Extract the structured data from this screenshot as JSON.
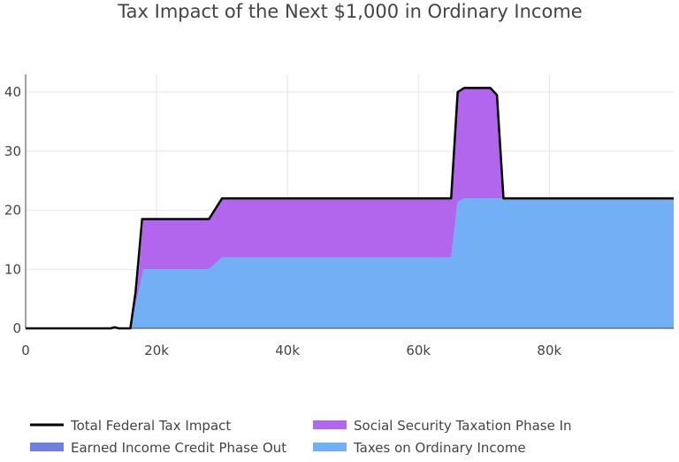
{
  "chart_data": {
    "type": "area",
    "title": "Tax Impact of the Next $1,000 in Ordinary Income",
    "xlabel": "",
    "ylabel": "",
    "xlim": [
      0,
      99000
    ],
    "ylim": [
      0,
      43
    ],
    "grid": true,
    "legend_position": "bottom",
    "x_ticks": [
      {
        "value": 0,
        "label": "0"
      },
      {
        "value": 20000,
        "label": "20k"
      },
      {
        "value": 40000,
        "label": "40k"
      },
      {
        "value": 60000,
        "label": "60k"
      },
      {
        "value": 80000,
        "label": "80k"
      }
    ],
    "y_ticks": [
      {
        "value": 0,
        "label": "0"
      },
      {
        "value": 10,
        "label": "10"
      },
      {
        "value": 20,
        "label": "20"
      },
      {
        "value": 30,
        "label": "30"
      },
      {
        "value": 40,
        "label": "40"
      }
    ],
    "legend": [
      {
        "name": "Total Federal Tax Impact",
        "color": "#000000",
        "kind": "line"
      },
      {
        "name": "Social Security Taxation Phase In",
        "color": "#b266ee",
        "kind": "fill"
      },
      {
        "name": "Earned Income Credit Phase Out",
        "color": "#6f7fdd",
        "kind": "fill"
      },
      {
        "name": "Taxes on Ordinary Income",
        "color": "#73aff4",
        "kind": "fill"
      }
    ],
    "series": [
      {
        "name": "Taxes on Ordinary Income",
        "color": "#73aff4",
        "x": [
          0,
          16000,
          17000,
          18000,
          28000,
          30000,
          65000,
          66000,
          67000,
          99000
        ],
        "y": [
          0,
          0,
          5,
          10,
          10,
          12,
          12,
          21.5,
          22,
          22
        ]
      },
      {
        "name": "Social Security Taxation Phase In",
        "color": "#b266ee",
        "x": [
          0,
          16000,
          17000,
          18000,
          28000,
          30000,
          65000,
          66000,
          67000,
          71000,
          72000,
          73000,
          99000
        ],
        "y": [
          0,
          0,
          1.5,
          8.5,
          8.5,
          10,
          10,
          18.5,
          18.7,
          18.7,
          17.5,
          0,
          0
        ]
      },
      {
        "name": "Earned Income Credit Phase Out",
        "color": "#6f7fdd",
        "x": [
          0,
          99000
        ],
        "y": [
          0,
          0
        ]
      },
      {
        "name": "Total Federal Tax Impact",
        "color": "#000000",
        "x": [
          0,
          13000,
          13600,
          14200,
          16000,
          16800,
          17800,
          28000,
          30000,
          65000,
          66000,
          67000,
          71000,
          72000,
          73000,
          99000
        ],
        "y": [
          0,
          0,
          0.2,
          0,
          0,
          6.2,
          18.5,
          18.5,
          22,
          22,
          40,
          40.7,
          40.7,
          39.5,
          22,
          22
        ]
      }
    ]
  }
}
